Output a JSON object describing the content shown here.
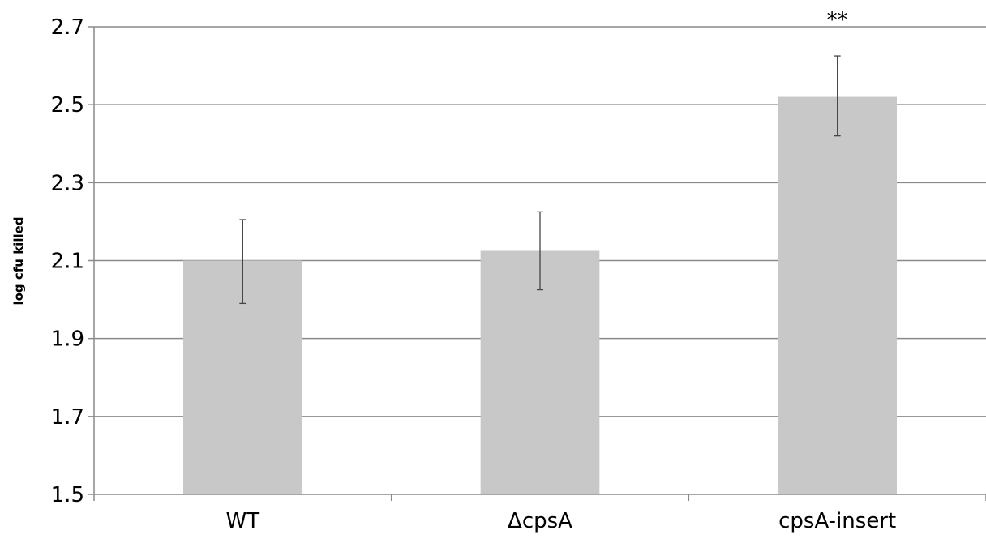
{
  "chart_data": {
    "type": "bar",
    "title": "",
    "xlabel": "",
    "ylabel": "log cfu killed",
    "ylim": [
      1.5,
      2.7
    ],
    "yticks": [
      "1.5",
      "1.7",
      "1.9",
      "2.1",
      "2.3",
      "2.5",
      "2.7"
    ],
    "grid": true,
    "categories": [
      "WT",
      "ΔcpsA",
      "cpsA-insert"
    ],
    "values": [
      2.1,
      2.125,
      2.52
    ],
    "error_low": [
      1.99,
      2.025,
      2.42
    ],
    "error_high": [
      2.205,
      2.225,
      2.625
    ],
    "annotations": [
      "",
      "",
      "**"
    ],
    "colors": {
      "bar": "#c8c8c8",
      "grid": "#8a8a8a",
      "axis": "#8a8a8a",
      "error": "#444444"
    }
  }
}
